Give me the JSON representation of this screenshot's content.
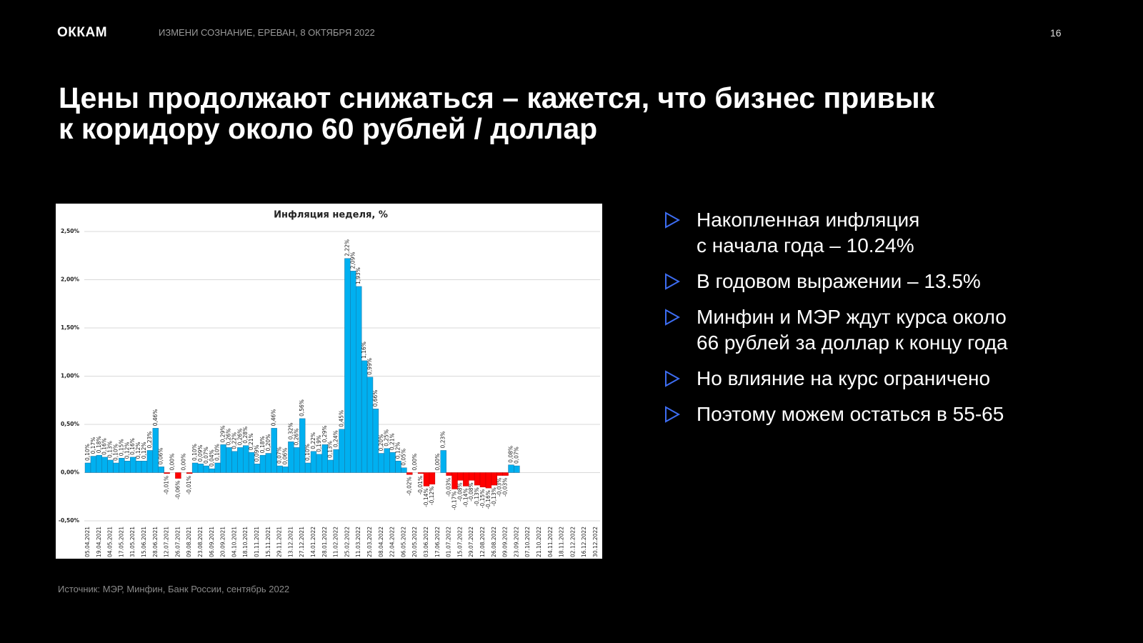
{
  "header": {
    "logo": "ОККАМ",
    "event": "ИЗМЕНИ СОЗНАНИЕ, ЕРЕВАН, 8 ОКТЯБРЯ 2022",
    "page": "16"
  },
  "title": [
    "Цены продолжают снижаться – кажется, что бизнес привык",
    "к коридору около 60 рублей / доллар"
  ],
  "bullets": [
    [
      "Накопленная инфляция",
      "с начала года – 10.24%"
    ],
    [
      "В годовом выражении – 13.5%"
    ],
    [
      "Минфин и МЭР ждут курса около",
      "66 рублей за доллар к концу года"
    ],
    [
      "Но влияние на курс ограничено"
    ],
    [
      "Поэтому можем остаться в 55-65"
    ]
  ],
  "source": "Источник: МЭР, Минфин, Банк России, сентябрь 2022",
  "chart_data": {
    "type": "bar",
    "title": "Инфляция неделя, %",
    "categories": [
      "05.04.2021",
      null,
      "19.04.2021",
      null,
      "04.05.2021",
      null,
      "17.05.2021",
      null,
      "31.05.2021",
      null,
      "15.06.2021",
      null,
      "28.06.2021",
      null,
      "12.07.2021",
      null,
      "26.07.2021",
      null,
      "09.08.2021",
      null,
      "23.08.2021",
      null,
      "06.09.2021",
      null,
      "20.09.2021",
      null,
      "04.10.2021",
      null,
      "18.10.2021",
      null,
      "01.11.2021",
      null,
      "15.11.2021",
      null,
      "29.11.2021",
      null,
      "13.12.2021",
      null,
      "27.12.2021",
      null,
      "14.01.2022",
      null,
      "28.01.2022",
      null,
      "11.02.2022",
      null,
      "25.02.2022",
      null,
      "11.03.2022",
      null,
      "25.03.2022",
      null,
      "08.04.2022",
      null,
      "22.04.2022",
      null,
      "06.05.2022",
      null,
      "20.05.2022",
      null,
      "03.06.2022",
      null,
      "17.06.2022",
      null,
      "01.07.2022",
      null,
      "15.07.2022",
      null,
      "29.07.2022",
      null,
      "12.08.2022",
      null,
      "26.08.2022",
      null,
      "09.09.2022",
      null,
      "23.09.2022",
      null,
      "07.10.2022",
      null,
      "21.10.2022",
      null,
      "04.11.2022",
      null,
      "18.11.2022",
      null,
      "02.12.2022",
      null,
      "16.12.2022",
      null,
      "30.12.2022"
    ],
    "values": [
      0.1,
      0.17,
      0.18,
      0.16,
      0.13,
      0.1,
      0.15,
      0.12,
      0.16,
      0.12,
      0.12,
      0.23,
      0.46,
      0.06,
      -0.01,
      0.0,
      -0.06,
      0.0,
      -0.01,
      0.1,
      0.09,
      0.07,
      0.04,
      0.1,
      0.29,
      0.26,
      0.22,
      0.26,
      0.28,
      0.21,
      0.09,
      0.18,
      0.2,
      0.46,
      0.07,
      0.06,
      0.32,
      0.26,
      0.56,
      0.1,
      0.22,
      0.19,
      0.29,
      0.13,
      0.24,
      0.45,
      2.22,
      2.09,
      1.93,
      1.16,
      0.99,
      0.66,
      0.2,
      0.25,
      0.21,
      0.12,
      0.05,
      -0.02,
      0.0,
      -0.01,
      -0.14,
      -0.12,
      0.0,
      0.23,
      -0.03,
      -0.17,
      -0.08,
      -0.14,
      -0.08,
      -0.13,
      -0.15,
      -0.16,
      -0.13,
      -0.03,
      -0.03,
      0.08,
      0.07,
      null,
      null,
      null,
      null,
      null,
      null,
      null,
      null,
      null,
      null,
      null,
      null,
      null,
      null
    ],
    "value_labels": [
      "0,10%",
      "0,17%",
      "0,18%",
      "0,16%",
      "0,13%",
      "0,10%",
      "0,15%",
      "0,12%",
      "0,16%",
      "0,12%",
      "0,12%",
      "0,23%",
      "0,46%",
      "0,06%",
      "-0,01%",
      "0,00%",
      "-0,06%",
      "0,00%",
      "-0,01%",
      "0,10%",
      "0,09%",
      "0,07%",
      "0,04%",
      "0,10%",
      "0,29%",
      "0,26%",
      "0,22%",
      "0,26%",
      "0,28%",
      "0,21%",
      "0,09%",
      "0,18%",
      "0,20%",
      "0,46%",
      "0,07%",
      "0,06%",
      "0,32%",
      "0,26%",
      "0,56%",
      "0,10%",
      "0,22%",
      "0,19%",
      "0,29%",
      "0,13%",
      "0,24%",
      "0,45%",
      "2,22%",
      "2,09%",
      "1,93%",
      "1,16%",
      "0,99%",
      "0,66%",
      "0,20%",
      "0,25%",
      "0,21%",
      "0,12%",
      "0,05%",
      "-0,02%",
      "0,00%",
      "-0,01%",
      "-0,14%",
      "-0,12%",
      "0,00%",
      "0,23%",
      "-0,03%",
      "-0,17%",
      "-0,08%",
      "-0,14%",
      "-0,08%",
      "-0,13%",
      "-0,15%",
      "-0,16%",
      "-0,13%",
      "-0,03%",
      "-0,03%",
      "0,08%",
      "0,07%",
      null,
      null,
      null,
      null,
      null,
      null,
      null,
      null,
      null,
      null,
      null,
      null,
      null,
      null
    ],
    "color": "#00b0f0",
    "negative_color": "#ff0000",
    "ylim": [
      -0.5,
      2.5
    ],
    "yticks": [
      {
        "value": -0.5,
        "label": "-0,50%"
      },
      {
        "value": 0,
        "label": "0,00%"
      },
      {
        "value": 0.5,
        "label": "0,50%"
      },
      {
        "value": 1,
        "label": "1,00%"
      },
      {
        "value": 1.5,
        "label": "1,50%"
      },
      {
        "value": 2,
        "label": "2,00%"
      },
      {
        "value": 2.5,
        "label": "2,50%"
      }
    ],
    "grid": true
  }
}
